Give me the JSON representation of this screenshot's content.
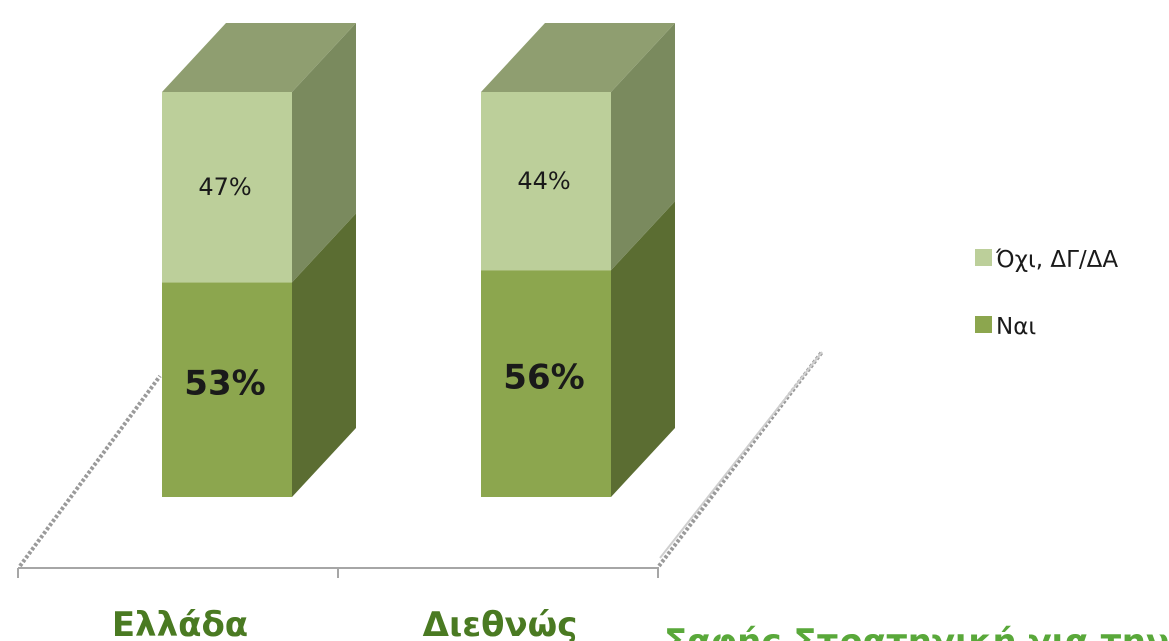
{
  "chart_data": {
    "type": "bar",
    "stacked": true,
    "three_d": true,
    "categories": [
      "Ελλάδα",
      "Διεθνώς"
    ],
    "series": [
      {
        "name": "Ναι",
        "values": [
          53,
          56
        ],
        "labels": [
          "53%",
          "56%"
        ],
        "color": "#8ca64e"
      },
      {
        "name": "Όχι, ΔΓ/ΔΑ",
        "values": [
          47,
          44
        ],
        "labels": [
          "47%",
          "44%"
        ],
        "color": "#bccf9a"
      }
    ],
    "ylim": [
      0,
      100
    ],
    "legend_position": "right",
    "grid": false
  },
  "footer": {
    "text": "Σαφής Στρατηγική για την Κ.Ε.Ε."
  }
}
